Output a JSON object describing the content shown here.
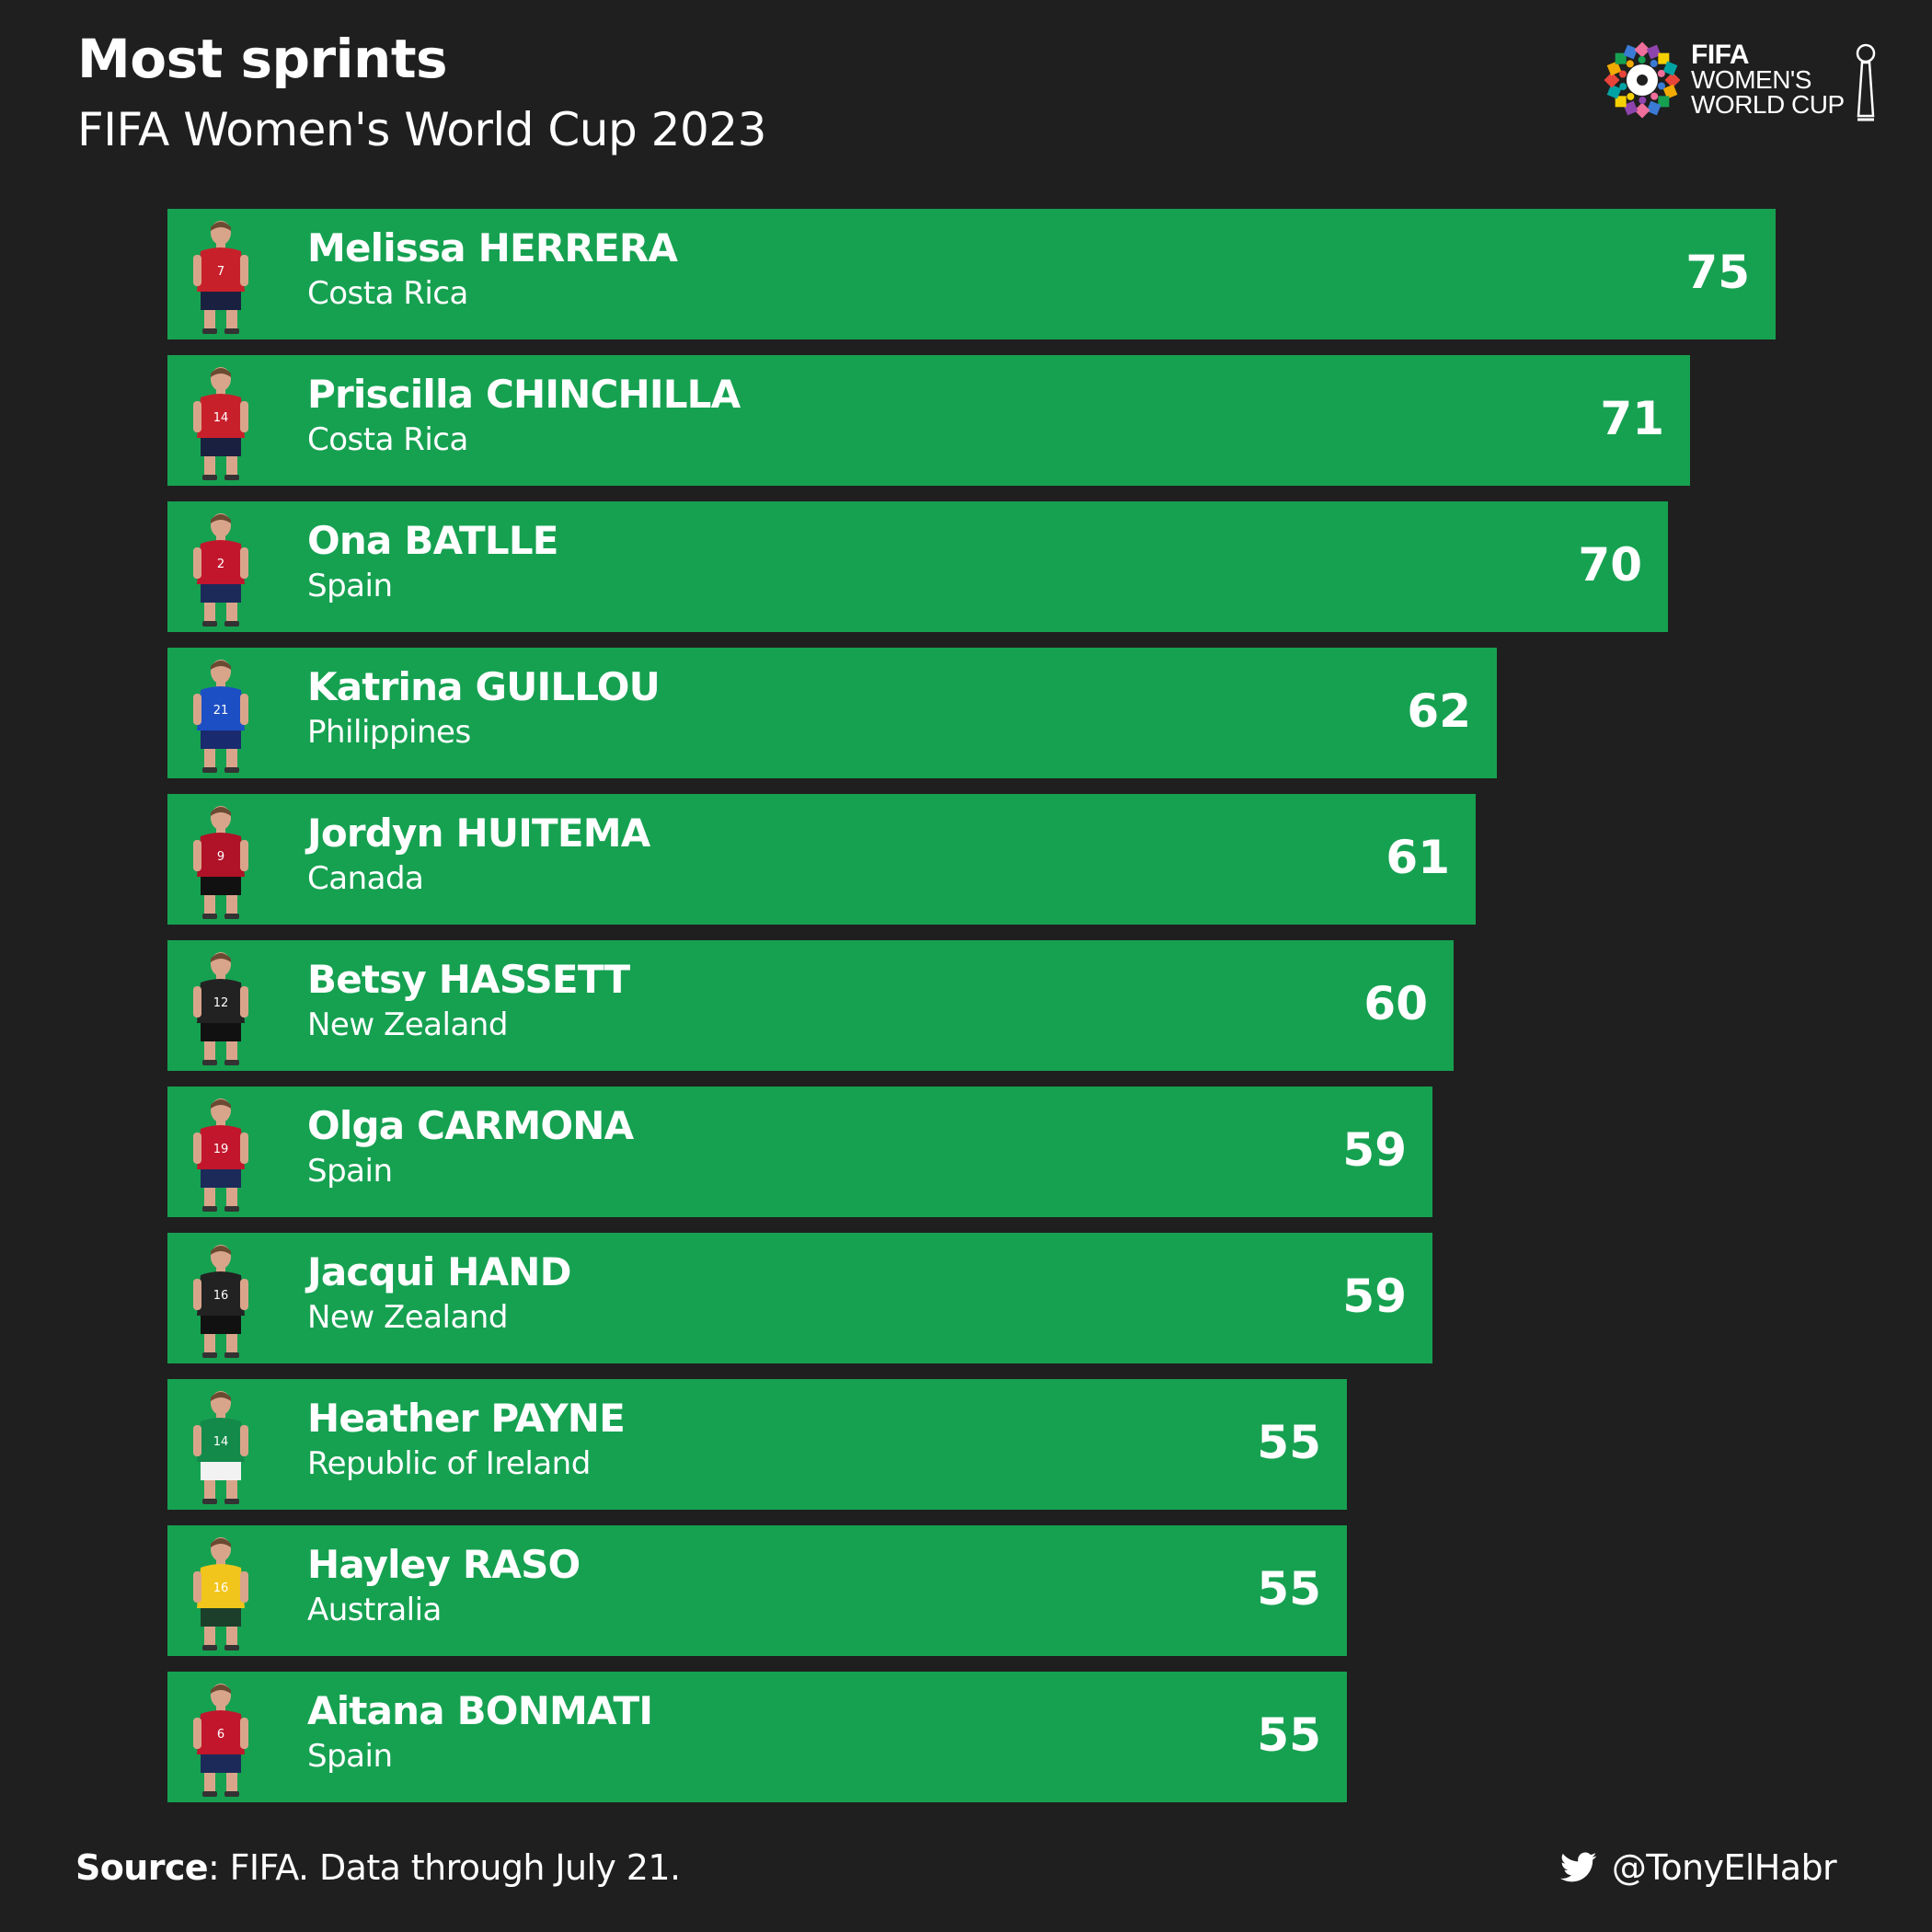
{
  "header": {
    "title": "Most sprints",
    "subtitle": "FIFA Women's World Cup 2023"
  },
  "logo": {
    "line1": "FIFA",
    "line2": "WOMEN'S",
    "line3": "WORLD CUP"
  },
  "chart_data": {
    "type": "bar",
    "orientation": "horizontal",
    "title": "Most sprints",
    "subtitle": "FIFA Women's World Cup 2023",
    "xlim": [
      0,
      75
    ],
    "bar_color": "#16a151",
    "rows": [
      {
        "name": "Melissa HERRERA",
        "country": "Costa Rica",
        "value": 75,
        "jersey_color": "#c8202b",
        "shorts_color": "#1a2140",
        "number": "7"
      },
      {
        "name": "Priscilla CHINCHILLA",
        "country": "Costa Rica",
        "value": 71,
        "jersey_color": "#c8202b",
        "shorts_color": "#1a2140",
        "number": "14"
      },
      {
        "name": "Ona BATLLE",
        "country": "Spain",
        "value": 70,
        "jersey_color": "#c2162c",
        "shorts_color": "#1c2a5a",
        "number": "2"
      },
      {
        "name": "Katrina GUILLOU",
        "country": "Philippines",
        "value": 62,
        "jersey_color": "#1d4fc4",
        "shorts_color": "#1a2a6e",
        "number": "21"
      },
      {
        "name": "Jordyn HUITEMA",
        "country": "Canada",
        "value": 61,
        "jersey_color": "#b01228",
        "shorts_color": "#111111",
        "number": "9"
      },
      {
        "name": "Betsy HASSETT",
        "country": "New Zealand",
        "value": 60,
        "jersey_color": "#222222",
        "shorts_color": "#111111",
        "number": "12"
      },
      {
        "name": "Olga CARMONA",
        "country": "Spain",
        "value": 59,
        "jersey_color": "#c2162c",
        "shorts_color": "#1c2a5a",
        "number": "19"
      },
      {
        "name": "Jacqui HAND",
        "country": "New Zealand",
        "value": 59,
        "jersey_color": "#222222",
        "shorts_color": "#111111",
        "number": "16"
      },
      {
        "name": "Heather PAYNE",
        "country": "Republic of Ireland",
        "value": 55,
        "jersey_color": "#138a4a",
        "shorts_color": "#f2f2f2",
        "number": "14"
      },
      {
        "name": "Hayley RASO",
        "country": "Australia",
        "value": 55,
        "jersey_color": "#f2c51c",
        "shorts_color": "#1b3f2a",
        "number": "16"
      },
      {
        "name": "Aitana BONMATI",
        "country": "Spain",
        "value": 55,
        "jersey_color": "#c2162c",
        "shorts_color": "#1c2a5a",
        "number": "6"
      }
    ]
  },
  "footer": {
    "source_label": "Source",
    "source_text": ": FIFA. Data through July 21.",
    "handle": "@TonyElHabr"
  }
}
